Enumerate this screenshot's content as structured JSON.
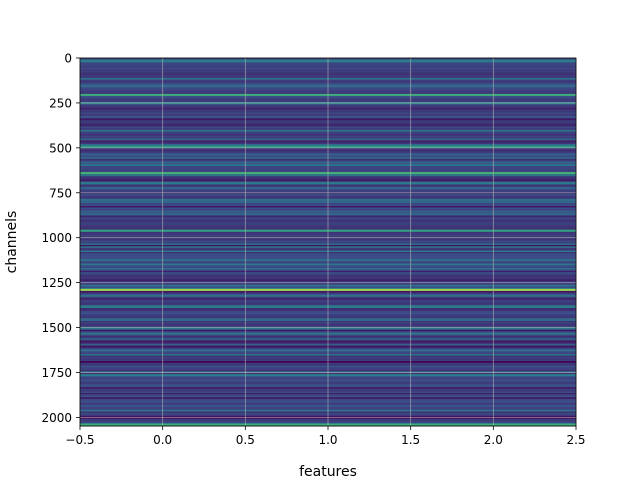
{
  "chart_data": {
    "type": "heatmap",
    "title": "",
    "xlabel": "features",
    "ylabel": "channels",
    "xlim": [
      -0.5,
      2.5
    ],
    "ylim": [
      2048,
      0
    ],
    "xticks": [
      -0.5,
      0.0,
      0.5,
      1.0,
      1.5,
      2.0,
      2.5
    ],
    "xtick_labels": [
      "−0.5",
      "0.0",
      "0.5",
      "1.0",
      "1.5",
      "2.0",
      "2.5"
    ],
    "yticks": [
      0,
      250,
      500,
      750,
      1000,
      1250,
      1500,
      1750,
      2000
    ],
    "ytick_labels": [
      "0",
      "250",
      "500",
      "750",
      "1000",
      "1250",
      "1500",
      "1750",
      "2000"
    ],
    "grid": true,
    "colormap": "viridis",
    "n_channels": 2048,
    "n_features": 3,
    "highlight_rows": [
      {
        "channel": 200,
        "value": 0.62
      },
      {
        "channel": 245,
        "value": 0.45
      },
      {
        "channel": 490,
        "value": 0.55
      },
      {
        "channel": 635,
        "value": 0.65
      },
      {
        "channel": 955,
        "value": 0.58
      },
      {
        "channel": 1285,
        "value": 0.85
      },
      {
        "channel": 1500,
        "value": 0.4
      },
      {
        "channel": 1685,
        "value": 0.0
      },
      {
        "channel": 1760,
        "value": 0.42
      },
      {
        "channel": 2035,
        "value": 0.62
      }
    ]
  }
}
